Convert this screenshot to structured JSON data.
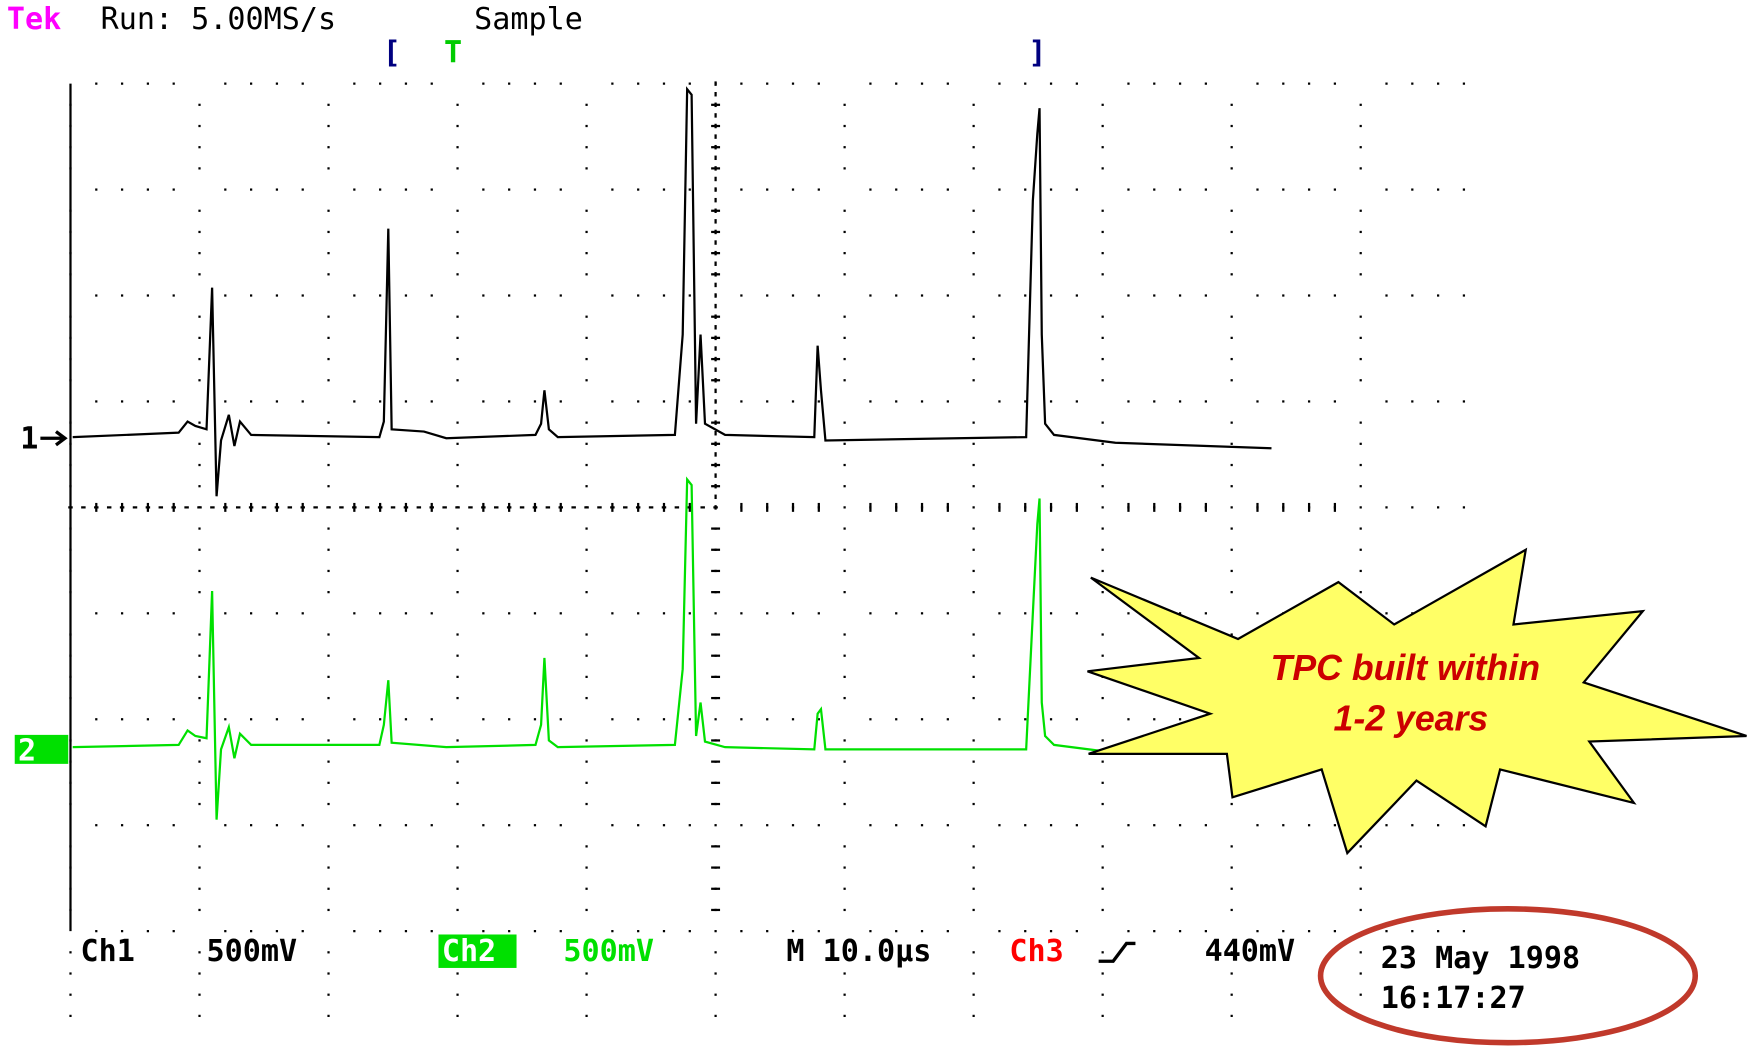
{
  "header": {
    "brand": "Tek",
    "status": "Run: 5.00MS/s",
    "mode": "Sample",
    "window_start": "[",
    "trigger_marker": "T",
    "window_end": "]"
  },
  "channels": [
    {
      "marker": "1"
    },
    {
      "marker": "2"
    }
  ],
  "footer": {
    "ch1": {
      "label": "Ch1",
      "scale": "500mV"
    },
    "ch2": {
      "label": "Ch2",
      "scale": "500mV"
    },
    "timebase": "M 10.0µs",
    "trigger": {
      "source": "Ch3",
      "level": "440mV"
    },
    "date": "23 May 1998",
    "time": "16:17:27"
  },
  "callout": {
    "lines": [
      "TPC built within",
      "1-2 years"
    ]
  }
}
